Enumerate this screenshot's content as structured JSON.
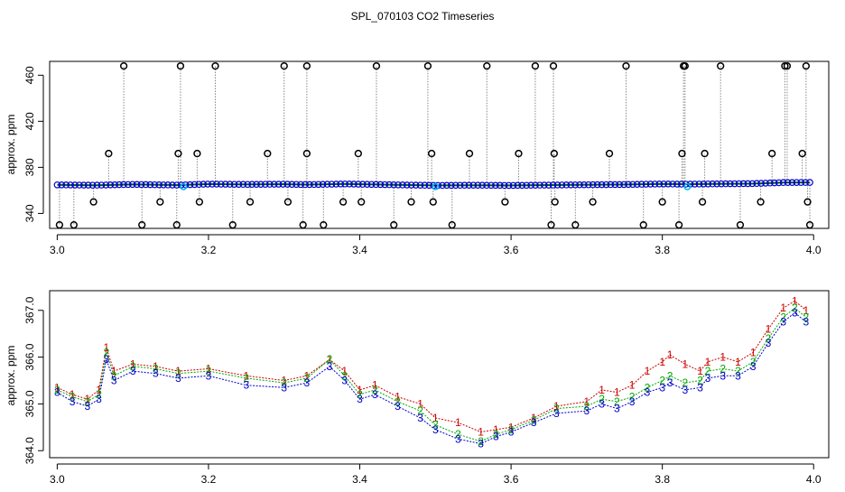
{
  "figure_title": "SPL_070103  CO2 Timeseries",
  "chart_data": [
    {
      "type": "scatter",
      "id": "upper",
      "title": "",
      "xlabel": "",
      "ylabel": "approx. ppm",
      "xlim": [
        2.99,
        4.02
      ],
      "ylim": [
        327,
        472
      ],
      "xticks": [
        3.0,
        3.2,
        3.4,
        3.6,
        3.8,
        4.0
      ],
      "xtick_labels": [
        "3.0",
        "3.2",
        "3.4",
        "3.6",
        "3.8",
        "4.0"
      ],
      "yticks": [
        340,
        380,
        420,
        460
      ],
      "ytick_labels": [
        "340",
        "380",
        "420",
        "460"
      ],
      "baseline_series": [
        {
          "name": "main",
          "color": "#0000cc",
          "x": [
            3.0,
            3.05,
            3.1,
            3.16,
            3.2,
            3.25,
            3.3,
            3.33,
            3.38,
            3.45,
            3.5,
            3.55,
            3.6,
            3.65,
            3.7,
            3.75,
            3.8,
            3.83,
            3.88,
            3.92,
            3.96,
            3.995
          ],
          "y": [
            364.8,
            364.5,
            365.2,
            364.6,
            365.5,
            365.2,
            365.4,
            365.0,
            365.6,
            364.8,
            364.3,
            364.5,
            364.3,
            364.6,
            364.9,
            365.1,
            365.6,
            365.4,
            365.7,
            365.9,
            366.8,
            366.9
          ]
        }
      ],
      "outliers": {
        "x": [
          3.003,
          3.022,
          3.048,
          3.068,
          3.088,
          3.112,
          3.136,
          3.158,
          3.16,
          3.163,
          3.185,
          3.188,
          3.209,
          3.232,
          3.255,
          3.278,
          3.3,
          3.305,
          3.325,
          3.33,
          3.33,
          3.352,
          3.378,
          3.398,
          3.402,
          3.422,
          3.445,
          3.468,
          3.49,
          3.495,
          3.497,
          3.522,
          3.545,
          3.568,
          3.592,
          3.61,
          3.632,
          3.653,
          3.656,
          3.657,
          3.658,
          3.685,
          3.708,
          3.73,
          3.752,
          3.775,
          3.8,
          3.822,
          3.826,
          3.828,
          3.83,
          3.853,
          3.856,
          3.877,
          3.903,
          3.93,
          3.945,
          3.962,
          3.965,
          3.985,
          3.99,
          3.992,
          3.995
        ],
        "y": [
          330,
          330,
          350,
          392,
          468,
          330,
          350,
          330,
          392,
          468,
          392,
          350,
          468,
          330,
          350,
          392,
          468,
          350,
          330,
          468,
          392,
          330,
          350,
          392,
          350,
          468,
          330,
          350,
          468,
          392,
          350,
          330,
          392,
          468,
          350,
          392,
          468,
          330,
          468,
          392,
          350,
          330,
          350,
          392,
          468,
          330,
          350,
          330,
          392,
          468,
          468,
          350,
          392,
          468,
          330,
          350,
          392,
          468,
          468,
          392,
          468,
          350,
          330
        ]
      },
      "cyan_points": {
        "x": [
          3.167,
          3.5,
          3.833
        ],
        "y": [
          363.2,
          363.2,
          363.2
        ]
      }
    },
    {
      "type": "line",
      "id": "lower",
      "title": "",
      "xlabel": "",
      "ylabel": "approx. ppm",
      "xlim": [
        2.99,
        4.02
      ],
      "ylim": [
        363.85,
        367.42
      ],
      "xticks": [
        3.0,
        3.2,
        3.4,
        3.6,
        3.8,
        4.0
      ],
      "xtick_labels": [
        "3.0",
        "3.2",
        "3.4",
        "3.6",
        "3.8",
        "4.0"
      ],
      "yticks": [
        364.0,
        365.0,
        366.0,
        367.0
      ],
      "ytick_labels": [
        "364.0",
        "365.0",
        "366.0",
        "367.0"
      ],
      "series": [
        {
          "name": "1",
          "color": "#cc0000",
          "x": [
            3.0,
            3.02,
            3.04,
            3.055,
            3.065,
            3.075,
            3.1,
            3.13,
            3.16,
            3.2,
            3.25,
            3.3,
            3.33,
            3.36,
            3.38,
            3.4,
            3.42,
            3.45,
            3.48,
            3.5,
            3.53,
            3.56,
            3.58,
            3.6,
            3.63,
            3.66,
            3.7,
            3.72,
            3.74,
            3.76,
            3.78,
            3.8,
            3.81,
            3.83,
            3.85,
            3.86,
            3.88,
            3.9,
            3.92,
            3.94,
            3.96,
            3.975,
            3.99
          ],
          "y": [
            365.35,
            365.2,
            365.1,
            365.3,
            366.2,
            365.7,
            365.85,
            365.8,
            365.7,
            365.75,
            365.6,
            365.5,
            365.6,
            365.95,
            365.7,
            365.3,
            365.4,
            365.15,
            365.0,
            364.7,
            364.6,
            364.4,
            364.45,
            364.5,
            364.7,
            364.95,
            365.05,
            365.3,
            365.25,
            365.4,
            365.7,
            365.9,
            366.05,
            365.85,
            365.7,
            365.9,
            366.0,
            365.9,
            366.1,
            366.6,
            367.05,
            367.2,
            367.0
          ]
        },
        {
          "name": "2",
          "color": "#00aa00",
          "x": [
            3.0,
            3.02,
            3.04,
            3.055,
            3.065,
            3.075,
            3.1,
            3.13,
            3.16,
            3.2,
            3.25,
            3.3,
            3.33,
            3.36,
            3.38,
            3.4,
            3.42,
            3.45,
            3.48,
            3.5,
            3.53,
            3.56,
            3.58,
            3.6,
            3.63,
            3.66,
            3.7,
            3.72,
            3.74,
            3.76,
            3.78,
            3.8,
            3.81,
            3.83,
            3.85,
            3.86,
            3.88,
            3.9,
            3.92,
            3.94,
            3.96,
            3.975,
            3.99
          ],
          "y": [
            365.3,
            365.15,
            365.05,
            365.2,
            366.1,
            365.6,
            365.8,
            365.75,
            365.65,
            365.7,
            365.55,
            365.45,
            365.55,
            365.95,
            365.6,
            365.2,
            365.3,
            365.05,
            364.85,
            364.55,
            364.35,
            364.2,
            364.35,
            364.45,
            364.65,
            364.9,
            364.95,
            365.1,
            365.05,
            365.15,
            365.35,
            365.5,
            365.6,
            365.45,
            365.5,
            365.7,
            365.75,
            365.7,
            365.9,
            366.4,
            366.85,
            367.05,
            366.85
          ]
        },
        {
          "name": "3",
          "color": "#0000cc",
          "x": [
            3.0,
            3.02,
            3.04,
            3.055,
            3.065,
            3.075,
            3.1,
            3.13,
            3.16,
            3.2,
            3.25,
            3.3,
            3.33,
            3.36,
            3.38,
            3.4,
            3.42,
            3.45,
            3.48,
            3.5,
            3.53,
            3.56,
            3.58,
            3.6,
            3.63,
            3.66,
            3.7,
            3.72,
            3.74,
            3.76,
            3.78,
            3.8,
            3.81,
            3.83,
            3.85,
            3.86,
            3.88,
            3.9,
            3.92,
            3.94,
            3.96,
            3.975,
            3.99
          ],
          "y": [
            365.25,
            365.05,
            364.95,
            365.1,
            365.95,
            365.5,
            365.7,
            365.65,
            365.55,
            365.6,
            365.4,
            365.35,
            365.45,
            365.8,
            365.5,
            365.1,
            365.2,
            364.95,
            364.7,
            364.45,
            364.25,
            364.15,
            364.3,
            364.4,
            364.6,
            364.8,
            364.85,
            365.0,
            364.9,
            365.05,
            365.25,
            365.35,
            365.45,
            365.3,
            365.35,
            365.55,
            365.6,
            365.6,
            365.8,
            366.3,
            366.75,
            366.95,
            366.75
          ]
        }
      ]
    }
  ]
}
